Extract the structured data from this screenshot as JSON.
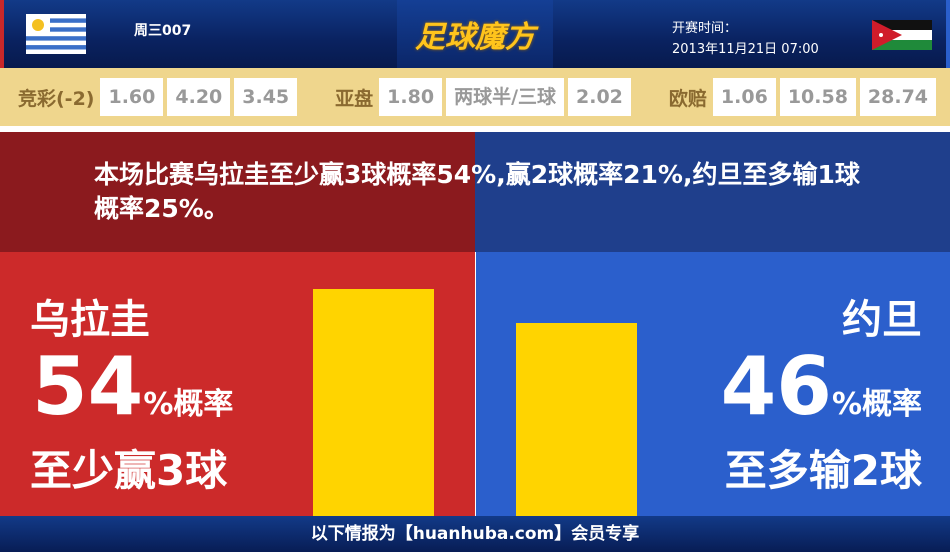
{
  "header": {
    "match_no": "周三007",
    "logo_text": "足球魔方",
    "time_label": "开赛时间：",
    "time_value": "2013年11月21日 07:00",
    "home_flag": "uruguay-flag",
    "away_flag": "jordan-flag"
  },
  "odds": {
    "jingcai": {
      "label": "竞彩(-2)",
      "values": [
        "1.60",
        "4.20",
        "3.45"
      ]
    },
    "yapan": {
      "label": "亚盘",
      "values": [
        "1.80",
        "两球半/三球",
        "2.02"
      ]
    },
    "oupei": {
      "label": "欧赔",
      "values": [
        "1.06",
        "10.58",
        "28.74"
      ]
    }
  },
  "banner": {
    "text": "本场比赛乌拉圭至少赢3球概率54%,赢2球概率21%,约旦至多输1球概率25%。"
  },
  "home": {
    "name": "乌拉圭",
    "percent": "54",
    "percent_suffix": "%概率",
    "desc": "至少赢3球",
    "bar_value": 54,
    "color": "#cc2a2a"
  },
  "away": {
    "name": "约旦",
    "percent": "46",
    "percent_suffix": "%概率",
    "desc": "至多输2球",
    "bar_value": 46,
    "color": "#2b5fcc"
  },
  "bar_color": "#ffd400",
  "footer": {
    "text": "以下情报为【huanhuba.com】会员专享"
  }
}
